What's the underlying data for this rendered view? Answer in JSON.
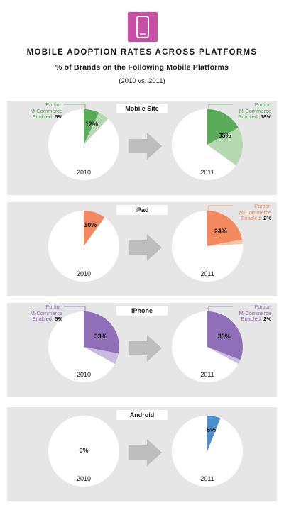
{
  "header": {
    "icon": "phone-icon",
    "badge_color": "#c94fa6",
    "title": "MOBILE ADOPTION RATES ACROSS PLATFORMS",
    "subtitle": "% of Brands on the Following Mobile Platforms",
    "years": "(2010 vs. 2011)"
  },
  "chart_data": [
    {
      "type": "pie",
      "title": "Mobile Site",
      "color": "#5aab5a",
      "light_color": "#b5d9b1",
      "text_color": "#5aab5a",
      "pies": [
        {
          "year": "2010",
          "value": 12,
          "label": "12%",
          "m_commerce": 5,
          "callout": {
            "line1": "Portion",
            "line2": "M-Commerce",
            "line3": "Enabled:",
            "value": "5%",
            "side": "left"
          }
        },
        {
          "year": "2011",
          "value": 35,
          "label": "35%",
          "m_commerce": 18,
          "callout": {
            "line1": "Portion",
            "line2": "M-Commerce",
            "line3": "Enabled:",
            "value": "18%",
            "side": "right"
          }
        }
      ]
    },
    {
      "type": "pie",
      "title": "iPad",
      "color": "#f2895f",
      "light_color": "#f8c2a6",
      "text_color": "#f2895f",
      "pies": [
        {
          "year": "2010",
          "value": 10,
          "label": "10%",
          "m_commerce": 0
        },
        {
          "year": "2011",
          "value": 24,
          "label": "24%",
          "m_commerce": 2,
          "callout": {
            "line1": "Portion",
            "line2": "M-Commerce",
            "line3": "Enabled:",
            "value": "2%",
            "side": "right"
          }
        }
      ]
    },
    {
      "type": "pie",
      "title": "iPhone",
      "color": "#8f6fb8",
      "light_color": "#cbbadf",
      "text_color": "#8f6fb8",
      "pies": [
        {
          "year": "2010",
          "value": 33,
          "label": "33%",
          "m_commerce": 5,
          "callout": {
            "line1": "Portion",
            "line2": "M-Commerce",
            "line3": "Enabled:",
            "value": "5%",
            "side": "left"
          }
        },
        {
          "year": "2011",
          "value": 33,
          "label": "33%",
          "m_commerce": 2,
          "callout": {
            "line1": "Portion",
            "line2": "M-Commerce",
            "line3": "Enabled:",
            "value": "2%",
            "side": "right"
          }
        }
      ]
    },
    {
      "type": "pie",
      "title": "Android",
      "color": "#4a8fd0",
      "light_color": "#a9cbe9",
      "text_color": "#4a8fd0",
      "pies": [
        {
          "year": "2010",
          "value": 0,
          "label": "0%",
          "m_commerce": 0
        },
        {
          "year": "2011",
          "value": 6,
          "label": "6%",
          "m_commerce": 0
        }
      ]
    }
  ]
}
